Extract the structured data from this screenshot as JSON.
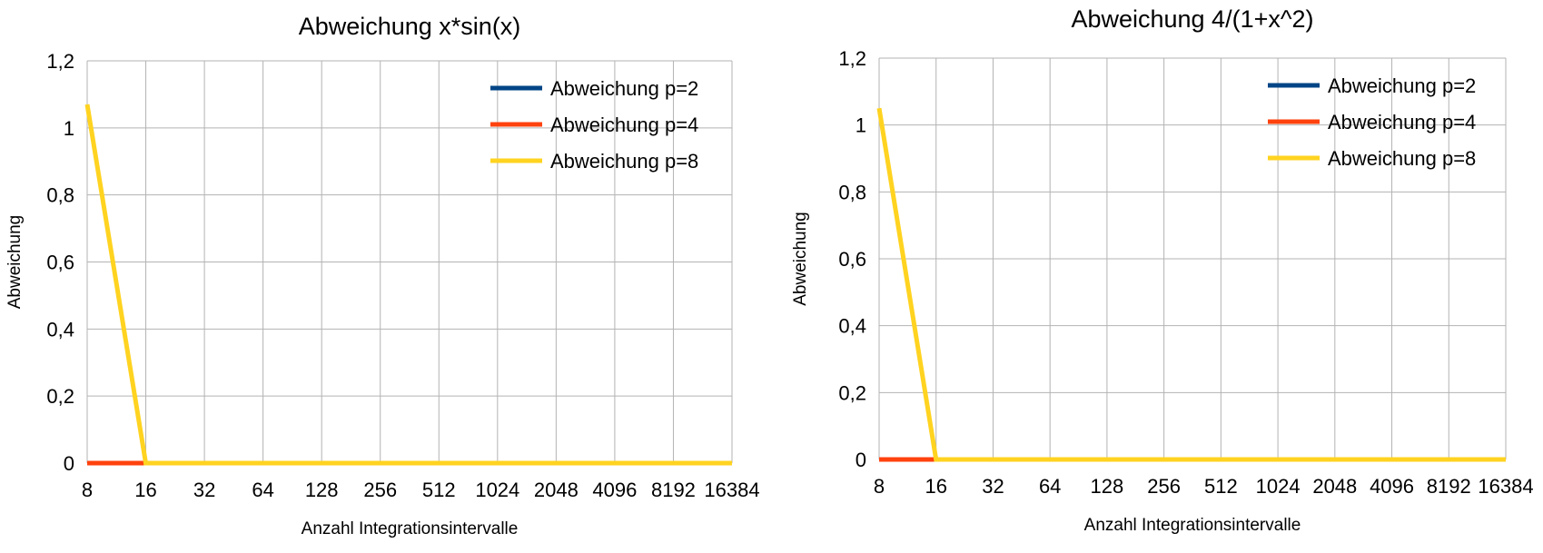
{
  "chart_data": [
    {
      "type": "line",
      "title": "Abweichung x*sin(x)",
      "xlabel": "Anzahl Integrationsintervalle",
      "ylabel": "Abweichung",
      "categories": [
        "8",
        "16",
        "32",
        "64",
        "128",
        "256",
        "512",
        "1024",
        "2048",
        "4096",
        "8192",
        "16384"
      ],
      "y_ticks": [
        "0",
        "0,2",
        "0,4",
        "0,6",
        "0,8",
        "1",
        "1,2"
      ],
      "ylim": [
        0,
        1.2
      ],
      "grid": true,
      "legend_position": "top-right",
      "series": [
        {
          "name": "Abweichung p=2",
          "color": "#004586",
          "values": [
            0,
            0,
            0,
            0,
            0,
            0,
            0,
            0,
            0,
            0,
            0,
            0
          ]
        },
        {
          "name": "Abweichung p=4",
          "color": "#ff420e",
          "values": [
            0,
            0,
            0,
            0,
            0,
            0,
            0,
            0,
            0,
            0,
            0,
            0
          ]
        },
        {
          "name": "Abweichung p=8",
          "color": "#ffd320",
          "values": [
            1.07,
            0,
            0,
            0,
            0,
            0,
            0,
            0,
            0,
            0,
            0,
            0
          ]
        }
      ]
    },
    {
      "type": "line",
      "title": "Abweichung 4/(1+x^2)",
      "xlabel": "Anzahl Integrationsintervalle",
      "ylabel": "Abweichung",
      "categories": [
        "8",
        "16",
        "32",
        "64",
        "128",
        "256",
        "512",
        "1024",
        "2048",
        "4096",
        "8192",
        "16384"
      ],
      "y_ticks": [
        "0",
        "0,2",
        "0,4",
        "0,6",
        "0,8",
        "1",
        "1,2"
      ],
      "ylim": [
        0,
        1.2
      ],
      "grid": true,
      "legend_position": "top-right",
      "series": [
        {
          "name": "Abweichung p=2",
          "color": "#004586",
          "values": [
            0,
            0,
            0,
            0,
            0,
            0,
            0,
            0,
            0,
            0,
            0,
            0
          ]
        },
        {
          "name": "Abweichung p=4",
          "color": "#ff420e",
          "values": [
            0,
            0,
            0,
            0,
            0,
            0,
            0,
            0,
            0,
            0,
            0,
            0
          ]
        },
        {
          "name": "Abweichung p=8",
          "color": "#ffd320",
          "values": [
            1.05,
            0,
            0,
            0,
            0,
            0,
            0,
            0,
            0,
            0,
            0,
            0
          ]
        }
      ]
    }
  ]
}
